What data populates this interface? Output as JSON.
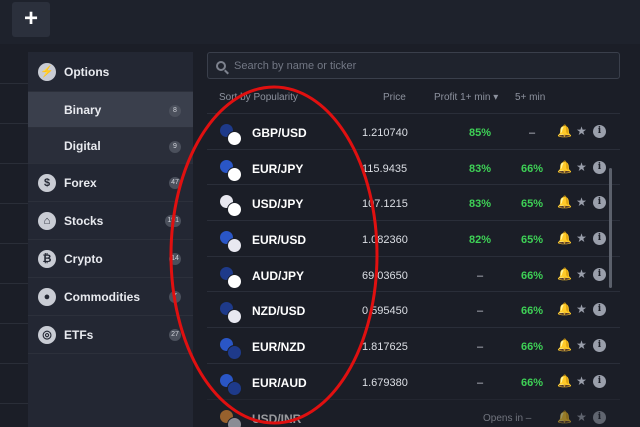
{
  "topbar": {
    "add_label": "+"
  },
  "sidebar": {
    "items": [
      {
        "label": "Options",
        "icon": "lightning-icon",
        "glyph": "⚡",
        "count": ""
      },
      {
        "label": "Binary",
        "count": "8",
        "sub": true,
        "active": true
      },
      {
        "label": "Digital",
        "count": "9",
        "sub": true
      },
      {
        "label": "Forex",
        "icon": "dollar-icon",
        "glyph": "$",
        "count": "47"
      },
      {
        "label": "Stocks",
        "icon": "bank-icon",
        "glyph": "⌂",
        "count": "191"
      },
      {
        "label": "Crypto",
        "icon": "bitcoin-icon",
        "glyph": "₿",
        "count": "14"
      },
      {
        "label": "Commodities",
        "icon": "drop-icon",
        "glyph": "●",
        "count": "7"
      },
      {
        "label": "ETFs",
        "icon": "etf-icon",
        "glyph": "◎",
        "count": "27"
      }
    ]
  },
  "search": {
    "placeholder": "Search by name or ticker"
  },
  "columns": {
    "sort": "Sort by Popularity",
    "price": "Price",
    "profit1": "Profit 1+ min ▾",
    "profit5": "5+ min"
  },
  "rows": [
    {
      "name": "GBP/USD",
      "price": "1.210740",
      "p1": "85%",
      "p5": "–",
      "flags": [
        "#1e3a8a",
        "#ffffff"
      ]
    },
    {
      "name": "EUR/JPY",
      "price": "115.9435",
      "p1": "83%",
      "p5": "66%",
      "flags": [
        "#2a56c6",
        "#ffffff"
      ]
    },
    {
      "name": "USD/JPY",
      "price": "107.1215",
      "p1": "83%",
      "p5": "65%",
      "flags": [
        "#e8e8f0",
        "#ffffff"
      ]
    },
    {
      "name": "EUR/USD",
      "price": "1.082360",
      "p1": "82%",
      "p5": "65%",
      "flags": [
        "#2a56c6",
        "#e8e8f0"
      ]
    },
    {
      "name": "AUD/JPY",
      "price": "69.03650",
      "p1": "–",
      "p5": "66%",
      "flags": [
        "#1e3a8a",
        "#ffffff"
      ]
    },
    {
      "name": "NZD/USD",
      "price": "0.595450",
      "p1": "–",
      "p5": "66%",
      "flags": [
        "#1e3a8a",
        "#e8e8f0"
      ]
    },
    {
      "name": "EUR/NZD",
      "price": "1.817625",
      "p1": "–",
      "p5": "66%",
      "flags": [
        "#2a56c6",
        "#1e3a8a"
      ]
    },
    {
      "name": "EUR/AUD",
      "price": "1.679380",
      "p1": "–",
      "p5": "66%",
      "flags": [
        "#2a56c6",
        "#1e3a8a"
      ]
    },
    {
      "name": "USD/INR",
      "price": "",
      "opens": "Opens in –",
      "flags": [
        "#ff9933",
        "#e8e8f0"
      ]
    }
  ],
  "colors": {
    "green": "#3ed156",
    "annotation_red": "#e01010"
  }
}
